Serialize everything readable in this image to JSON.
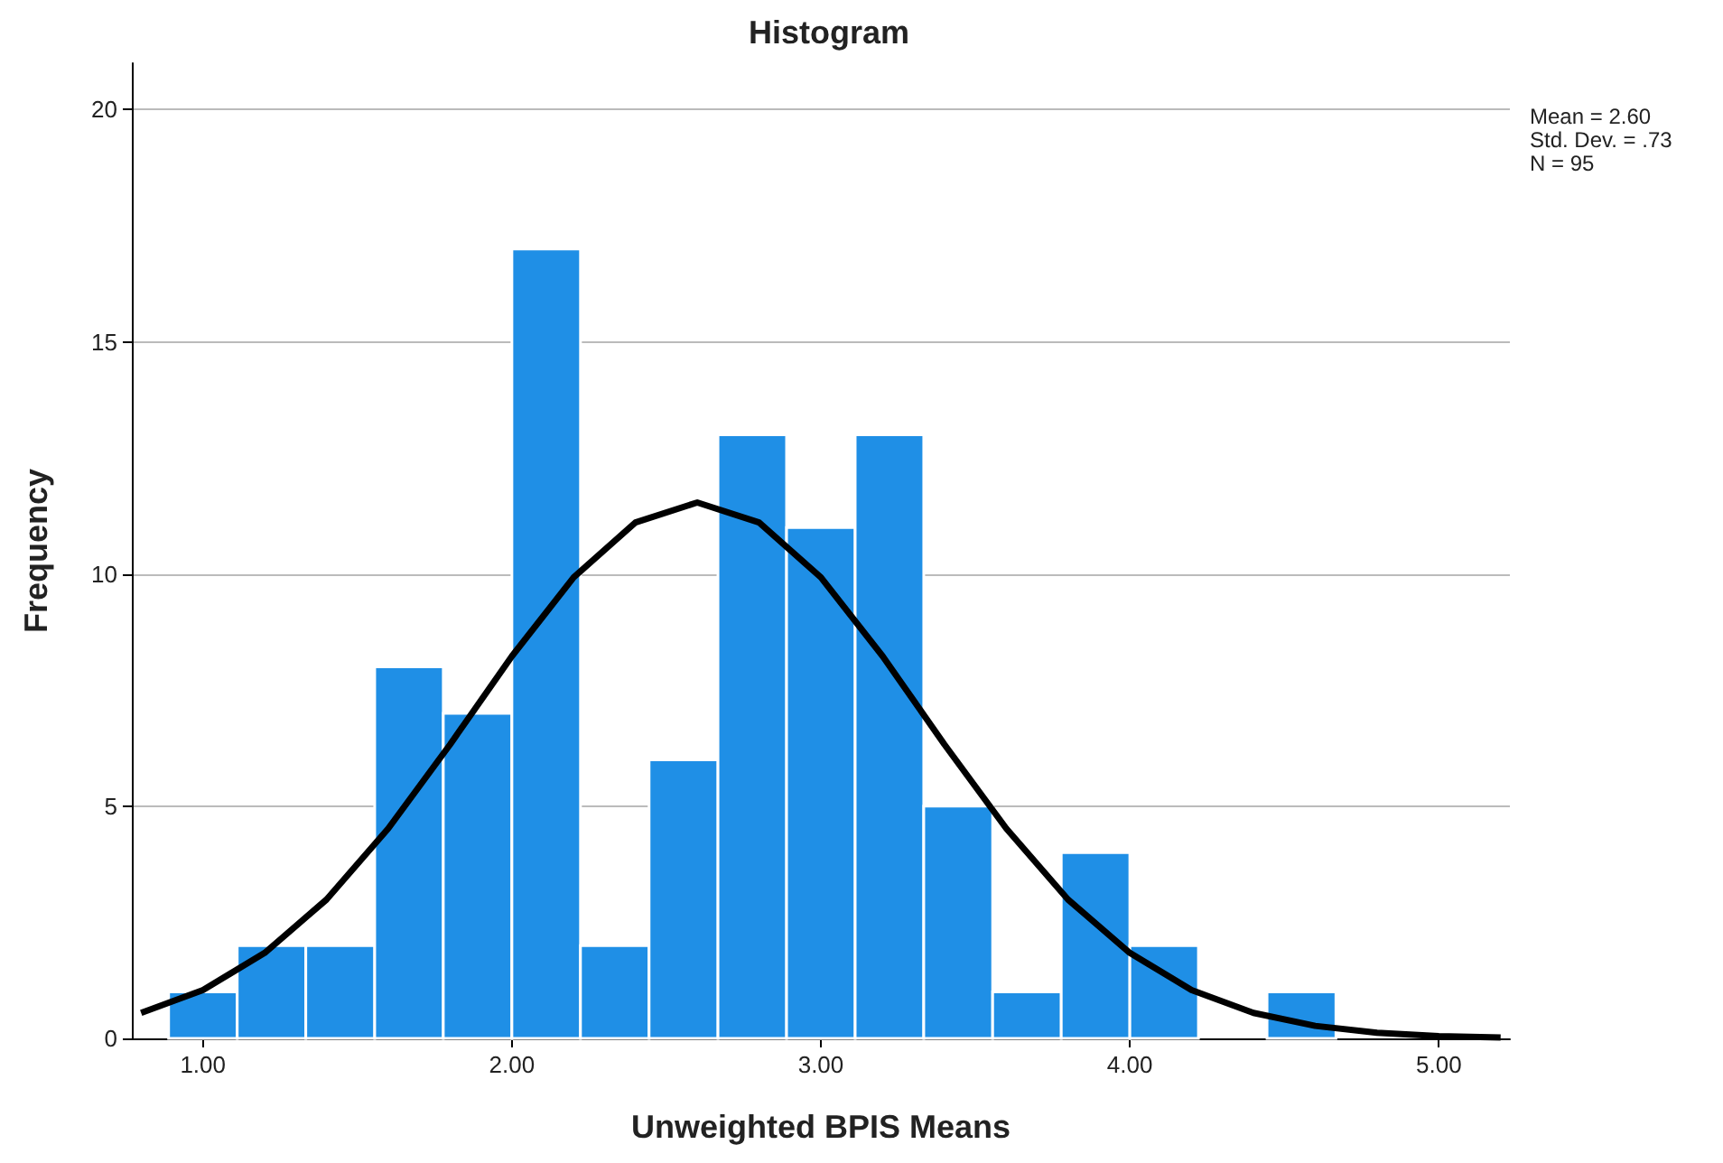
{
  "chart_data": {
    "type": "histogram",
    "title": "Histogram",
    "xlabel": "Unweighted BPIS Means",
    "ylabel": "Frequency",
    "annotations": [
      "Mean = 2.60",
      "Std. Dev. = .73",
      "N = 95"
    ],
    "series": [
      {
        "type": "histogram",
        "color": "#1f8fe6",
        "bins": [
          0.889,
          1.111,
          1.333,
          1.556,
          1.778,
          2.0,
          2.222,
          2.444,
          2.667,
          2.889,
          3.111,
          3.333,
          3.556,
          3.778,
          4.0,
          4.222,
          4.444,
          4.667
        ],
        "values": [
          1,
          2,
          2,
          8,
          7,
          17,
          2,
          6,
          13,
          11,
          13,
          5,
          1,
          4,
          2,
          0,
          1
        ]
      },
      {
        "type": "line",
        "color": "#000000",
        "x": [
          0.8,
          1.0,
          1.2,
          1.4,
          1.6,
          1.8,
          2.0,
          2.2,
          2.4,
          2.6,
          2.8,
          3.0,
          3.2,
          3.4,
          3.6,
          3.8,
          4.0,
          4.2,
          4.4,
          4.6,
          4.8,
          5.0,
          5.2
        ],
        "values": [
          0.55,
          1.04,
          1.84,
          2.99,
          4.52,
          6.33,
          8.23,
          9.93,
          11.11,
          11.54,
          11.11,
          9.93,
          8.23,
          6.33,
          4.52,
          2.99,
          1.84,
          1.04,
          0.55,
          0.27,
          0.12,
          0.05,
          0.02
        ]
      }
    ],
    "xlim": [
      0.77,
      5.23
    ],
    "xticks": [
      {
        "value": 1,
        "label": "1.00"
      },
      {
        "value": 2,
        "label": "2.00"
      },
      {
        "value": 3,
        "label": "3.00"
      },
      {
        "value": 4,
        "label": "4.00"
      },
      {
        "value": 5,
        "label": "5.00"
      }
    ],
    "ylim": [
      0,
      21
    ],
    "yticks": [
      0,
      5,
      10,
      15,
      20
    ],
    "grid": "y",
    "marker": "none",
    "line_style": "solid"
  }
}
